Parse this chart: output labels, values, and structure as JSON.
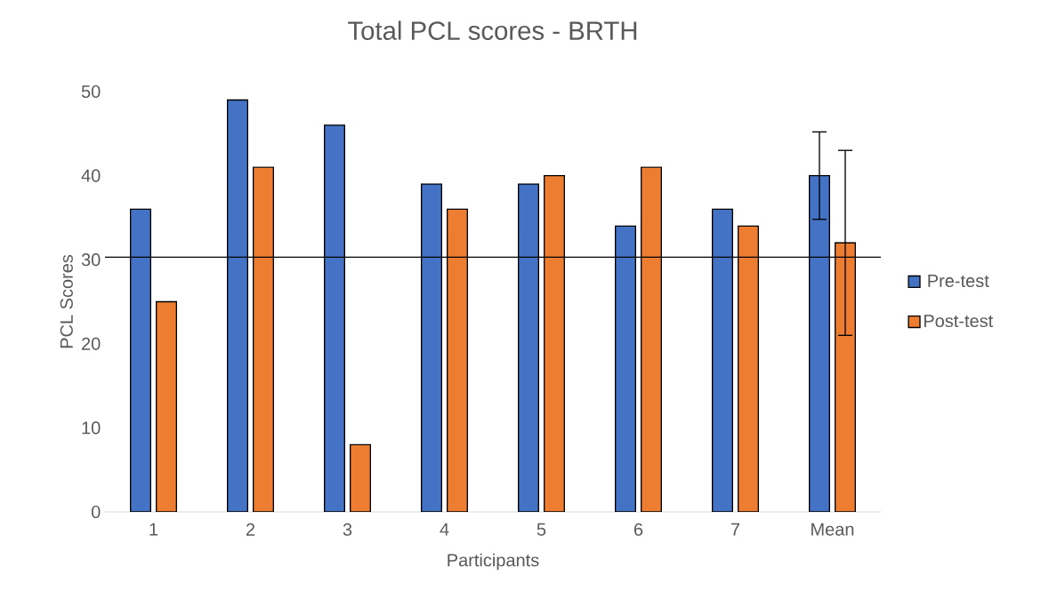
{
  "chart_data": {
    "type": "bar",
    "title": "Total PCL scores - BRTH",
    "xlabel": "Participants",
    "ylabel": "PCL Scores",
    "categories": [
      "1",
      "2",
      "3",
      "4",
      "5",
      "6",
      "7",
      "Mean"
    ],
    "series": [
      {
        "name": "Pre-test",
        "color": "#4472c4",
        "values": [
          36,
          49,
          46,
          39,
          39,
          34,
          36,
          40
        ],
        "errors": [
          null,
          null,
          null,
          null,
          null,
          null,
          null,
          5.2
        ]
      },
      {
        "name": "Post-test",
        "color": "#ed7d31",
        "values": [
          25,
          41,
          8,
          36,
          40,
          41,
          34,
          32
        ],
        "errors": [
          null,
          null,
          null,
          null,
          null,
          null,
          null,
          11
        ]
      }
    ],
    "ylim": [
      0,
      50
    ],
    "yticks": [
      0,
      10,
      20,
      30,
      40,
      50
    ],
    "ref_lines": [
      {
        "axis": "y",
        "value": 30.3,
        "color": "#000000"
      }
    ],
    "legend": "right",
    "grid": false
  }
}
